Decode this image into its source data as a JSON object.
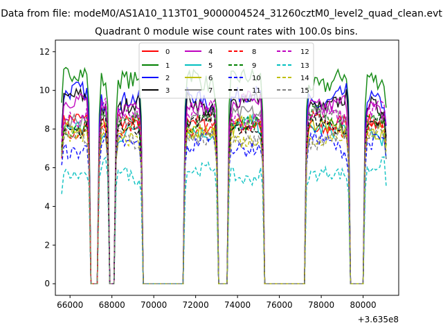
{
  "chart_data": {
    "type": "line",
    "suptitle": "Data from file: modeM0/AS1A10_113T01_9000004524_31260cztM0_level2_quad_clean.evt",
    "title": "Quadrant 0 module wise count rates with 100.0s bins.",
    "xlabel": "",
    "ylabel": "",
    "x_offset_label": "+3.635e8",
    "xlim": [
      65300,
      81700
    ],
    "ylim": [
      -0.6,
      12.6
    ],
    "x_ticks": [
      66000,
      68000,
      70000,
      72000,
      74000,
      76000,
      78000,
      80000
    ],
    "y_ticks": [
      0,
      2,
      4,
      6,
      8,
      10,
      12
    ],
    "bin_seconds": 100,
    "legend_position": "upper-center",
    "legend_columns": 4,
    "segments": [
      {
        "start": 65600,
        "end": 66900
      },
      {
        "start": 67400,
        "end": 67800
      },
      {
        "start": 68200,
        "end": 69400
      },
      {
        "start": 71500,
        "end": 73000
      },
      {
        "start": 73600,
        "end": 75200
      },
      {
        "start": 77300,
        "end": 79300
      },
      {
        "start": 80100,
        "end": 81100
      }
    ],
    "zero_gaps": [
      {
        "start": 67000,
        "end": 67300
      },
      {
        "start": 69600,
        "end": 71400
      },
      {
        "start": 73200,
        "end": 73500
      },
      {
        "start": 75400,
        "end": 77200
      },
      {
        "start": 79500,
        "end": 80000
      }
    ],
    "series": [
      {
        "name": "0",
        "color": "#ff0000",
        "dash": "solid",
        "mean": 8.3
      },
      {
        "name": "1",
        "color": "#008000",
        "dash": "solid",
        "mean": 10.6
      },
      {
        "name": "2",
        "color": "#0000ff",
        "dash": "solid",
        "mean": 9.6
      },
      {
        "name": "3",
        "color": "#000000",
        "dash": "solid",
        "mean": 9.3
      },
      {
        "name": "4",
        "color": "#bf00bf",
        "dash": "solid",
        "mean": 9.2
      },
      {
        "name": "5",
        "color": "#00bfbf",
        "dash": "solid",
        "mean": 7.9
      },
      {
        "name": "6",
        "color": "#bfbf00",
        "dash": "solid",
        "mean": 8.0
      },
      {
        "name": "7",
        "color": "#808080",
        "dash": "solid",
        "mean": 8.6
      },
      {
        "name": "8",
        "color": "#ff0000",
        "dash": "dashed",
        "mean": 8.1
      },
      {
        "name": "9",
        "color": "#008000",
        "dash": "dashed",
        "mean": 8.4
      },
      {
        "name": "10",
        "color": "#0000ff",
        "dash": "dashed",
        "mean": 7.2
      },
      {
        "name": "11",
        "color": "#000000",
        "dash": "dashed",
        "mean": 8.2
      },
      {
        "name": "12",
        "color": "#bf00bf",
        "dash": "dashed",
        "mean": 8.8
      },
      {
        "name": "13",
        "color": "#00bfbf",
        "dash": "dashed",
        "mean": 5.8
      },
      {
        "name": "14",
        "color": "#bfbf00",
        "dash": "dashed",
        "mean": 7.7
      },
      {
        "name": "15",
        "color": "#808080",
        "dash": "dashed",
        "mean": 7.6
      }
    ]
  }
}
